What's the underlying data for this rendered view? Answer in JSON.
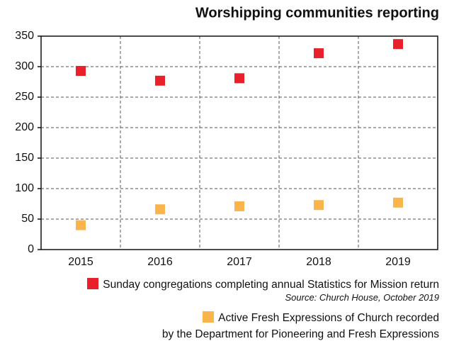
{
  "chart_data": {
    "type": "line",
    "title": "Worshipping communities reporting",
    "source": "Source: Church House, October 2019",
    "categories": [
      "2015",
      "2016",
      "2017",
      "2018",
      "2019"
    ],
    "series": [
      {
        "name": "Sunday congregations completing annual Statistics for Mission return",
        "color": "#e8202a",
        "values": [
          293,
          277,
          281,
          322,
          337
        ]
      },
      {
        "name": "Active Fresh Expressions of Church recorded\nby the Department for Pioneering and Fresh Expressions",
        "color": "#f9b54c",
        "values": [
          40,
          66,
          71,
          73,
          77
        ]
      }
    ],
    "ylim": [
      0,
      350
    ],
    "yticks": [
      0,
      50,
      100,
      150,
      200,
      250,
      300,
      350
    ],
    "grid": true
  }
}
